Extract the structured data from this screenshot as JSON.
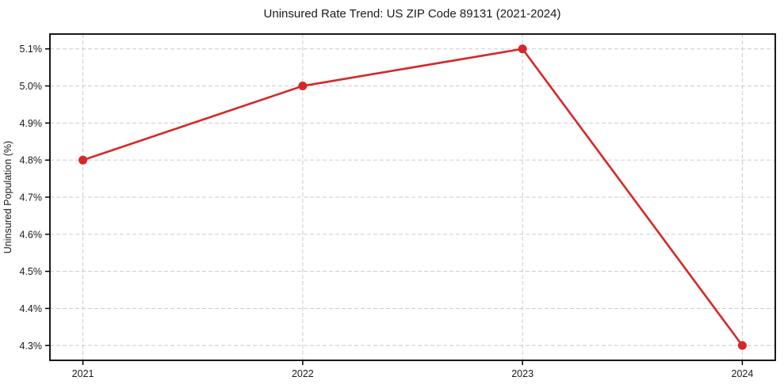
{
  "chart_data": {
    "type": "line",
    "title": "Uninsured Rate Trend: US ZIP Code 89131 (2021-2024)",
    "xlabel": "",
    "ylabel": "Uninsured Population (%)",
    "x": [
      2021,
      2022,
      2023,
      2024
    ],
    "x_tick_labels": [
      "2021",
      "2022",
      "2023",
      "2024"
    ],
    "values": [
      4.8,
      5.0,
      5.1,
      4.3
    ],
    "series_name": "Uninsured Population (%)",
    "y_ticks": [
      4.3,
      4.4,
      4.5,
      4.6,
      4.7,
      4.8,
      4.9,
      5.0,
      5.1
    ],
    "y_tick_labels": [
      "4.3%",
      "4.4%",
      "4.5%",
      "4.6%",
      "4.7%",
      "4.8%",
      "4.9%",
      "5.0%",
      "5.1%"
    ],
    "xlim": [
      2020.85,
      2024.15
    ],
    "ylim": [
      4.26,
      5.14
    ],
    "grid": true,
    "grid_style": "dashed",
    "legend": "none",
    "colors": {
      "line": "#d62728",
      "marker": "#d62728",
      "grid": "#cccccc",
      "border": "#000000",
      "text": "#1a1a1a",
      "background": "#ffffff"
    }
  }
}
